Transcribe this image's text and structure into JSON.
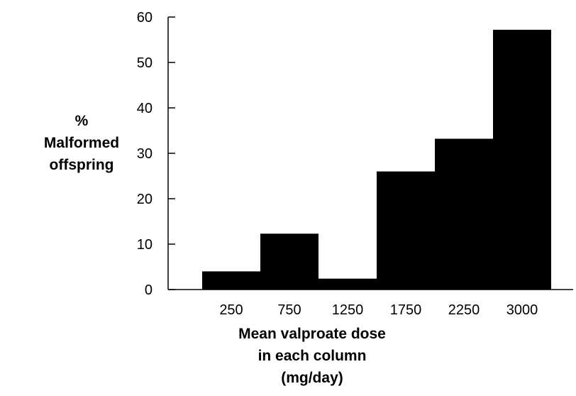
{
  "chart_data": {
    "type": "bar",
    "categories": [
      "250",
      "750",
      "1250",
      "1750",
      "2250",
      "3000"
    ],
    "values": [
      4,
      12.3,
      2.4,
      26,
      33.2,
      57.2
    ],
    "ylim": [
      0,
      60
    ],
    "yticks": [
      "0",
      "10",
      "20",
      "30",
      "40",
      "50",
      "60"
    ],
    "ylabel_lines": [
      "%",
      "Malformed",
      "offspring"
    ],
    "xlabel_lines": [
      "Mean valproate dose",
      "in each column",
      "(mg/day)"
    ],
    "grid": false,
    "bar_color": "#000000"
  }
}
